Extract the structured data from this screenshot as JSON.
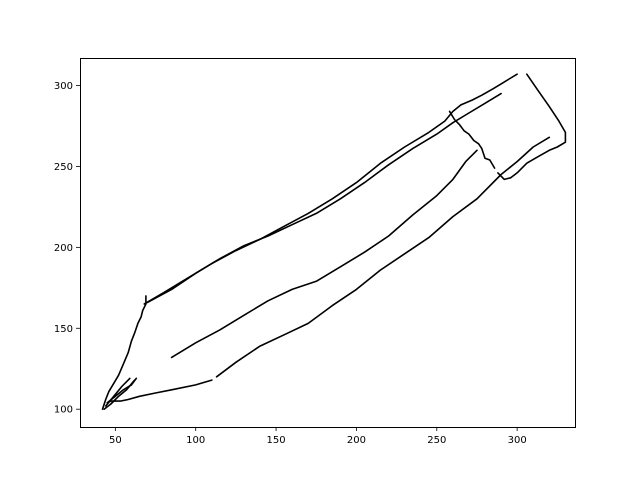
{
  "chart_data": {
    "type": "line",
    "title": "",
    "xlabel": "",
    "ylabel": "",
    "xlim": [
      28,
      336
    ],
    "ylim": [
      89,
      317
    ],
    "xticks": [
      50,
      100,
      150,
      200,
      250,
      300
    ],
    "yticks": [
      100,
      150,
      200,
      250,
      300
    ],
    "grid": false,
    "legend": "none",
    "line_color": "#000000",
    "series": [
      {
        "x": [
          69,
          69,
          67,
          66,
          64,
          62,
          60,
          58,
          55,
          52,
          49,
          46,
          44,
          42
        ],
        "y": [
          170,
          165,
          161,
          157,
          153,
          147,
          142,
          135,
          128,
          121,
          116,
          111,
          106,
          100
        ]
      },
      {
        "x": [
          68,
          80,
          95,
          110,
          125,
          140,
          155,
          170,
          185,
          200,
          215,
          230,
          245,
          255,
          260,
          265,
          272,
          278,
          285,
          290,
          295,
          300
        ],
        "y": [
          165,
          172,
          181,
          190,
          198,
          205,
          213,
          221,
          230,
          240,
          252,
          262,
          271,
          278,
          284,
          288,
          291,
          294,
          298,
          301,
          304,
          307
        ]
      },
      {
        "x": [
          306,
          313,
          320,
          326,
          330,
          330,
          325,
          320,
          313,
          306,
          300,
          296,
          292,
          288
        ],
        "y": [
          307,
          297,
          287,
          278,
          271,
          265,
          262,
          260,
          256,
          252,
          246,
          243,
          242,
          246
        ]
      },
      {
        "x": [
          286,
          283,
          280,
          278,
          276,
          273,
          270,
          267,
          264,
          261,
          258
        ],
        "y": [
          249,
          254,
          255,
          261,
          264,
          266,
          270,
          272,
          276,
          279,
          284
        ]
      },
      {
        "x": [
          70,
          85,
          100,
          115,
          130,
          145,
          160,
          175,
          190,
          205,
          220,
          235,
          250,
          260,
          270,
          280,
          290
        ],
        "y": [
          166,
          174,
          184,
          193,
          201,
          207,
          214,
          221,
          230,
          240,
          251,
          261,
          270,
          277,
          283,
          289,
          295
        ]
      },
      {
        "x": [
          85,
          100,
          115,
          130,
          145,
          160,
          175,
          190,
          205,
          220,
          235,
          250,
          260,
          268,
          275
        ],
        "y": [
          132,
          141,
          149,
          158,
          167,
          174,
          179,
          188,
          197,
          207,
          220,
          232,
          242,
          253,
          260
        ]
      },
      {
        "x": [
          113,
          125,
          140,
          155,
          170,
          185,
          200,
          215,
          230,
          245,
          260,
          275,
          290,
          300,
          310,
          320
        ],
        "y": [
          120,
          129,
          139,
          146,
          153,
          164,
          174,
          186,
          196,
          206,
          219,
          230,
          245,
          253,
          262,
          268
        ]
      },
      {
        "x": [
          110,
          100,
          85,
          75,
          65,
          58,
          53,
          50,
          47,
          45
        ],
        "y": [
          118,
          115,
          112,
          110,
          108,
          106,
          105,
          105,
          105,
          104
        ]
      },
      {
        "x": [
          45,
          50,
          55,
          60,
          63
        ],
        "y": [
          104,
          108,
          112,
          115,
          119
        ]
      },
      {
        "x": [
          47,
          52,
          57,
          62
        ],
        "y": [
          103,
          108,
          112,
          118
        ]
      },
      {
        "x": [
          44,
          49,
          54,
          59
        ],
        "y": [
          102,
          108,
          114,
          119
        ]
      },
      {
        "x": [
          43,
          47,
          50
        ],
        "y": [
          100,
          103,
          106
        ]
      }
    ]
  }
}
